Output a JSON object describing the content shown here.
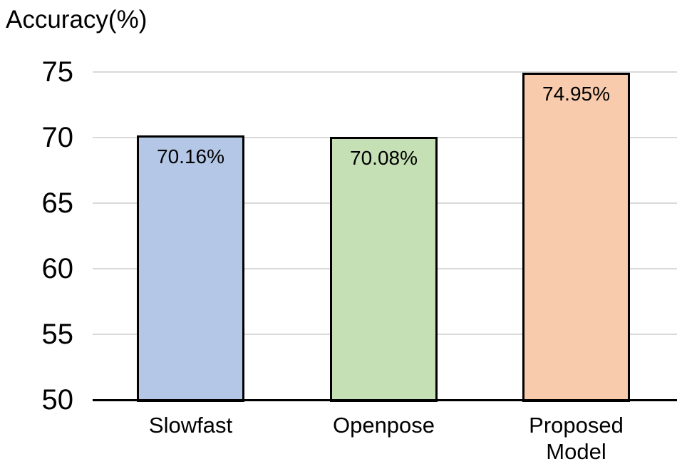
{
  "chart_data": {
    "type": "bar",
    "title": "Accuracy(%)",
    "categories": [
      "Slowfast",
      "Openpose",
      "Proposed Model"
    ],
    "values": [
      70.16,
      70.08,
      74.95
    ],
    "data_labels": [
      "70.16%",
      "70.08%",
      "74.95%"
    ],
    "bar_colors": [
      "#b4c7e7",
      "#c5e0b4",
      "#f8cbad"
    ],
    "bar_border_color": "#000000",
    "yticks": [
      50,
      55,
      60,
      65,
      70,
      75
    ],
    "ylim": [
      50,
      75
    ],
    "ylabel": "Accuracy(%)",
    "xlabel": "",
    "grid": "horizontal",
    "gridline_color": "#d9d9d9",
    "axis_line_color": "#000000",
    "background_color": "#ffffff",
    "text_color": "#000000",
    "legend_position": "none"
  }
}
